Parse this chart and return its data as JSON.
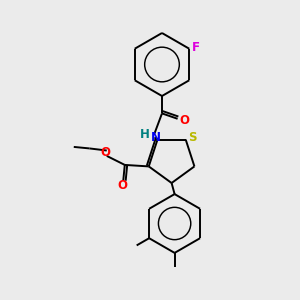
{
  "bg_color": "#ebebeb",
  "atom_colors": {
    "S": "#b8b800",
    "N": "#0000ee",
    "O": "#ff0000",
    "F": "#dd00dd",
    "H": "#008080",
    "C": "#000000"
  },
  "figsize": [
    3.0,
    3.0
  ],
  "dpi": 100,
  "lw": 1.4,
  "font_size": 8.5
}
